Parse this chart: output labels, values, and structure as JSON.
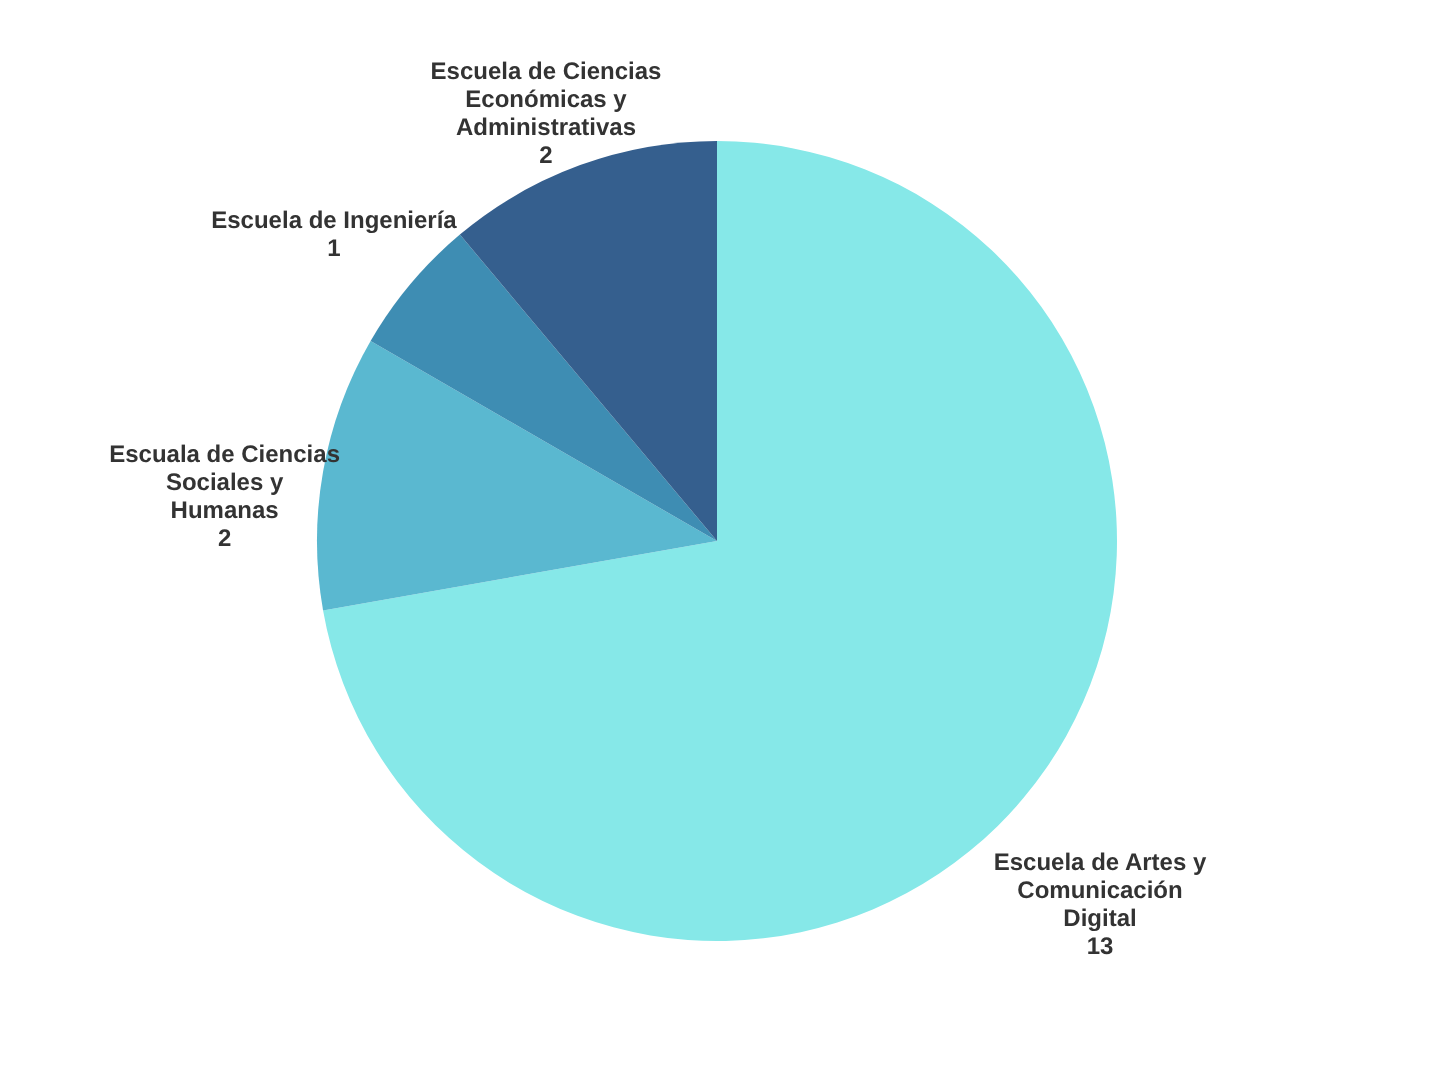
{
  "chart_data": {
    "type": "pie",
    "categories": [
      "Escuela de Artes y\nComunicación\nDigital",
      "Escuala de Ciencias\nSociales y\nHumanas",
      "Escuela de Ingeniería",
      "Escuela de Ciencias\nEconómicas y\nAdministrativas"
    ],
    "values": [
      13,
      2,
      1,
      2
    ],
    "colors": [
      "#86e8e8",
      "#5ab8d0",
      "#3e8db3",
      "#355f8e"
    ],
    "data_labels": true,
    "legend": false
  }
}
